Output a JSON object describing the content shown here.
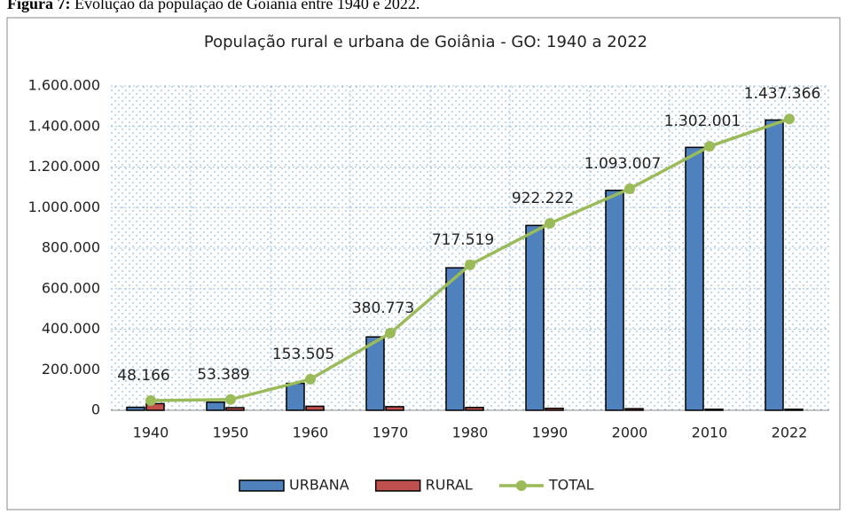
{
  "caption": {
    "label": "Figura 7:",
    "text": "Evolução da população de Goiânia entre 1940 e 2022."
  },
  "chart_data": {
    "type": "bar",
    "title": "População rural e urbana de Goiânia - GO: 1940 a 2022",
    "categories": [
      "1940",
      "1950",
      "1960",
      "1970",
      "1980",
      "1990",
      "2000",
      "2010",
      "2022"
    ],
    "series": [
      {
        "name": "URBANA",
        "type": "bar",
        "color": "#4f81bd",
        "values": [
          15000,
          40000,
          133000,
          362000,
          703000,
          912000,
          1085000,
          1297000,
          1432000
        ]
      },
      {
        "name": "RURAL",
        "type": "bar",
        "color": "#c0504d",
        "values": [
          33000,
          13000,
          20000,
          18000,
          14000,
          10000,
          8000,
          5000,
          5000
        ]
      },
      {
        "name": "TOTAL",
        "type": "line",
        "color": "#9bbb59",
        "values": [
          48166,
          53389,
          153505,
          380773,
          717519,
          922222,
          1093007,
          1302001,
          1437366
        ],
        "value_labels": [
          "48.166",
          "53.389",
          "153.505",
          "380.773",
          "717.519",
          "922.222",
          "1.093.007",
          "1.302.001",
          "1.437.366"
        ]
      }
    ],
    "ylim": [
      0,
      1600000
    ],
    "yticks": [
      0,
      {
        "value": 200000,
        "label": "200.000"
      },
      {
        "value": 400000,
        "label": "400.000"
      },
      {
        "value": 600000,
        "label": "600.000"
      },
      {
        "value": 800000,
        "label": "800.000"
      },
      {
        "value": 1000000,
        "label": "1.000.000"
      },
      {
        "value": 1200000,
        "label": "1.200.000"
      },
      {
        "value": 1400000,
        "label": "1.400.000"
      },
      {
        "value": 1600000,
        "label": "1.600.000"
      }
    ],
    "grid": true,
    "legend": "bottom"
  }
}
